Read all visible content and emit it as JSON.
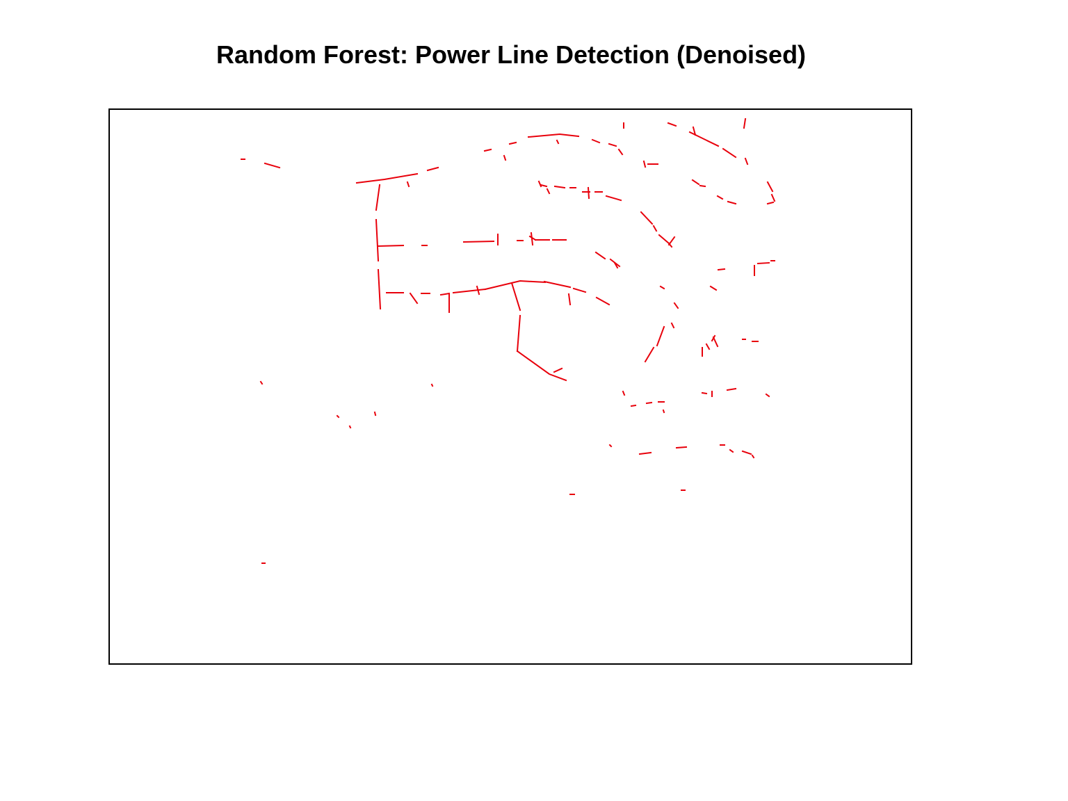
{
  "title": "Random Forest: Power Line Detection (Denoised)",
  "colors": {
    "background": "#ffffff",
    "frame": "#000000",
    "detection": "#e8000b"
  },
  "raster": {
    "grid": false,
    "axes_shown": false,
    "legend": "none"
  }
}
